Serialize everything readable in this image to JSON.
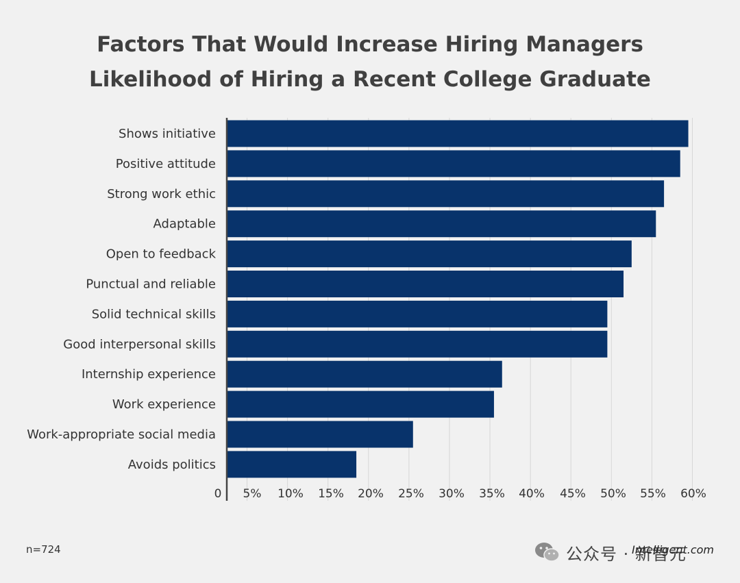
{
  "title_lines": [
    "Factors That Would Increase Hiring Managers",
    "Likelihood of Hiring a Recent College Graduate"
  ],
  "footnote": "n=724",
  "source": "Intelligent.com",
  "watermark": {
    "icon": "wechat-icon",
    "text": "公众号 · 新智元"
  },
  "colors": {
    "background": "#f1f1f1",
    "bar": "#08336b",
    "grid": "#d6d6d6",
    "axis": "#444444",
    "title": "#404040"
  },
  "chart_data": {
    "type": "bar",
    "orientation": "horizontal",
    "title": "Factors That Would Increase Hiring Managers Likelihood of Hiring a Recent College Graduate",
    "categories": [
      "Shows initiative",
      "Positive attitude",
      "Strong work ethic",
      "Adaptable",
      "Open to feedback",
      "Punctual and reliable",
      "Solid technical skills",
      "Good interpersonal skills",
      "Internship experience",
      "Work experience",
      "Work-appropriate social media",
      "Avoids politics"
    ],
    "values": [
      57,
      56,
      54,
      53,
      50,
      49,
      47,
      47,
      34,
      33,
      23,
      16
    ],
    "xlim": [
      0,
      60
    ],
    "tick_values": [
      0,
      5,
      10,
      15,
      20,
      25,
      30,
      35,
      40,
      45,
      50,
      55,
      60
    ],
    "tick_labels": [
      "0",
      "5%",
      "10%",
      "15%",
      "20%",
      "25%",
      "30%",
      "35%",
      "40%",
      "45%",
      "50%",
      "55%",
      "60%"
    ],
    "grid": true,
    "legend": "none"
  }
}
